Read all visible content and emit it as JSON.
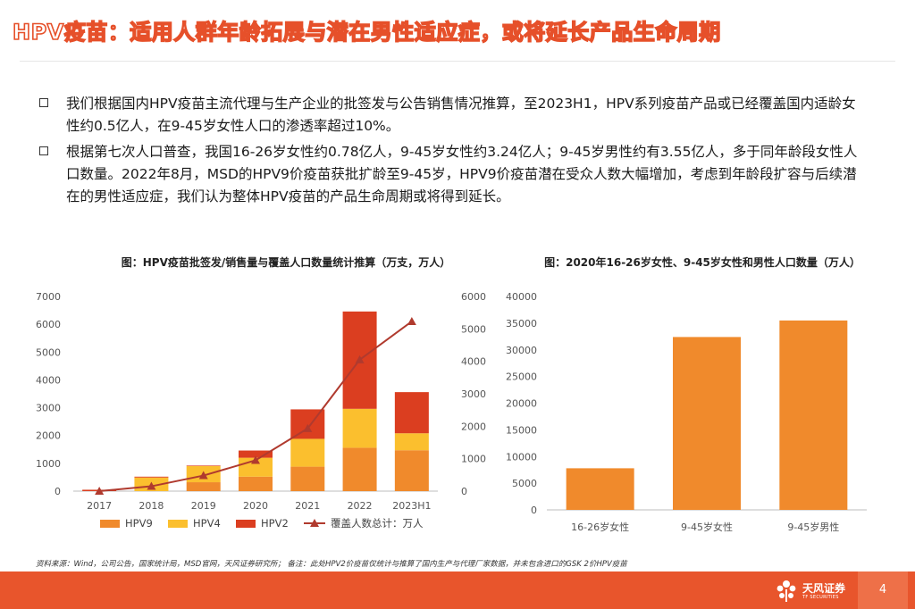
{
  "title": "HPV疫苗：适用人群年龄拓展与潜在男性适应症，或将延长产品生命周期",
  "bullets": [
    "我们根据国内HPV疫苗主流代理与生产企业的批签发与公告销售情况推算，至2023H1，HPV系列疫苗产品或已经覆盖国内适龄女性约0.5亿人，在9-45岁女性人口的渗透率超过10%。",
    "根据第七次人口普查，我国16-26岁女性约0.78亿人，9-45岁女性约3.24亿人；9-45岁男性约有3.55亿人，多于同年龄段女性人口数量。2022年8月，MSD的HPV9价疫苗获批扩龄至9-45岁，HPV9价疫苗潜在受众人数大幅增加，考虑到年龄段扩容与后续潜在的男性适应症，我们认为整体HPV疫苗的产品生命周期或将得到延长。"
  ],
  "chart_data": [
    {
      "type": "bar",
      "stacked": true,
      "title": "图：HPV疫苗批签发/销售量与覆盖人口数量统计推算（万支，万人）",
      "categories": [
        "2017",
        "2018",
        "2019",
        "2020",
        "2021",
        "2022",
        "2023H1"
      ],
      "series": [
        {
          "name": "HPV9",
          "color": "#F08A2C",
          "values": [
            0,
            0,
            320,
            520,
            880,
            1560,
            1470
          ]
        },
        {
          "name": "HPV4",
          "color": "#FBBF2E",
          "values": [
            0,
            490,
            580,
            680,
            1000,
            1400,
            610
          ]
        },
        {
          "name": "HPV2",
          "color": "#DB3E20",
          "values": [
            50,
            30,
            20,
            260,
            1060,
            3500,
            1480
          ]
        }
      ],
      "line_series": {
        "name": "覆盖人数总计：万人",
        "color": "#B03A2E",
        "axis": "right",
        "values": [
          0,
          150,
          480,
          950,
          1930,
          4050,
          5230
        ]
      },
      "y_left": {
        "min": 0,
        "max": 7000,
        "ticks": [
          0,
          1000,
          2000,
          3000,
          4000,
          5000,
          6000,
          7000
        ]
      },
      "y_right": {
        "min": 0,
        "max": 6000,
        "ticks": [
          0,
          1000,
          2000,
          3000,
          4000,
          5000,
          6000
        ]
      },
      "legend_position": "bottom"
    },
    {
      "type": "bar",
      "title": "图：2020年16-26岁女性、9-45岁女性和男性人口数量（万人）",
      "categories": [
        "16-26岁女性",
        "9-45岁女性",
        "9-45岁男性"
      ],
      "values": [
        7800,
        32400,
        35500
      ],
      "color": "#F08A2C",
      "ylim": [
        0,
        40000
      ],
      "ticks": [
        0,
        5000,
        10000,
        15000,
        20000,
        25000,
        30000,
        35000,
        40000
      ]
    }
  ],
  "footer": {
    "note": "资料来源：Wind，公司公告，国家统计局，MSD官网，天风证券研究所；  备注：此处HPV2价疫苗仅统计与推算了国内生产与代理厂家数据，并未包含进口的GSK 2价HPV疫苗",
    "logo_name": "天风证券",
    "logo_sub": "TF SECURITIES",
    "page_number": "4"
  },
  "colors": {
    "accent": "#E8552C",
    "title_stroke": "#E6502A"
  }
}
